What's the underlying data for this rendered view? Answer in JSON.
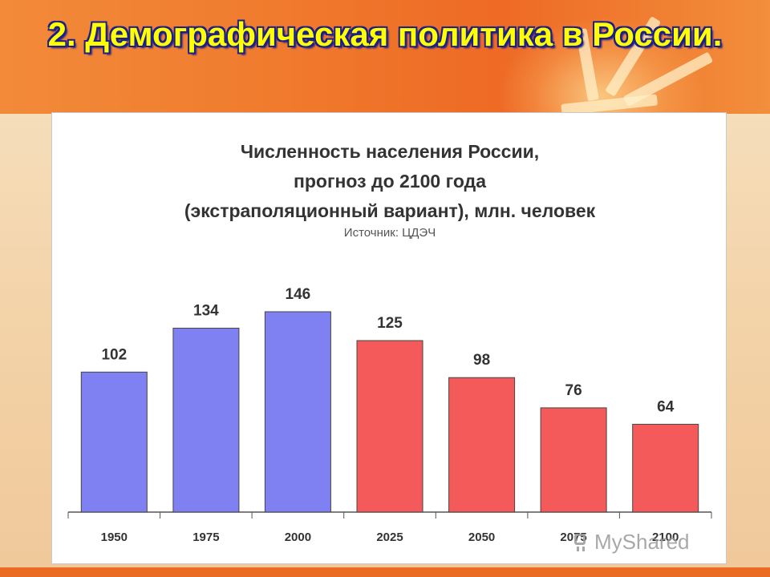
{
  "slide": {
    "title": "2. Демографическая политика в России."
  },
  "watermark": {
    "text": "MyShared",
    "icon": "presentation-board-icon"
  },
  "colors": {
    "historical": "#7f80f2",
    "forecast": "#f55a5a",
    "bar_outline": "#444444"
  },
  "chart_data": {
    "type": "bar",
    "title_lines": [
      "Численность населения России,",
      "прогноз до 2100 года",
      "(экстраполяционный вариант), млн. человек"
    ],
    "source": "Источник: ЦДЭЧ",
    "categories": [
      "1950",
      "1975",
      "2000",
      "2025",
      "2050",
      "2075",
      "2100"
    ],
    "values": [
      102,
      134,
      146,
      125,
      98,
      76,
      64
    ],
    "data_labels": [
      "102",
      "134",
      "146",
      "125",
      "98",
      "76",
      "64"
    ],
    "forecast_from_index": 3,
    "ylim": [
      0,
      160
    ],
    "grid": false,
    "legend": "none"
  }
}
